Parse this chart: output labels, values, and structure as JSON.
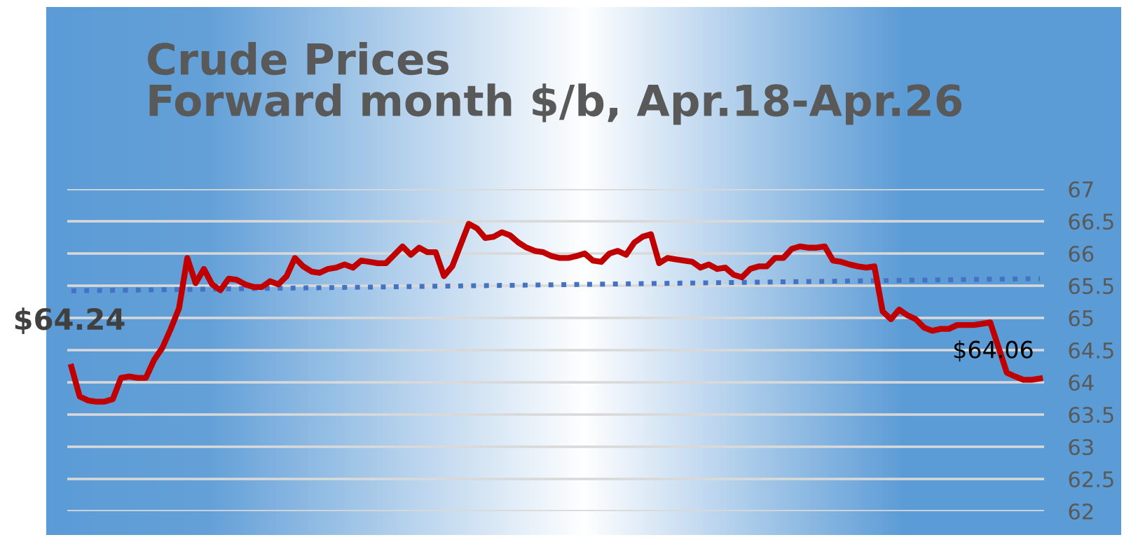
{
  "chart_data": {
    "type": "line",
    "title": "Crude Prices\nForward month $/b, Apr.18-Apr.26",
    "categories": [
      null,
      null,
      null,
      null,
      null,
      null,
      null,
      null,
      null,
      null,
      null,
      null,
      null,
      null,
      null,
      null,
      null,
      null,
      null,
      null,
      null,
      null,
      null,
      null,
      null,
      null,
      null,
      null,
      null,
      null,
      null,
      null,
      null,
      null,
      null,
      null,
      null,
      null,
      null,
      null,
      null,
      null,
      null,
      null,
      null,
      null,
      null,
      null,
      null,
      null,
      null,
      null,
      null,
      null,
      null,
      null,
      null,
      null,
      null,
      null,
      null,
      null,
      null,
      null,
      null,
      null,
      null,
      null,
      null,
      null,
      null,
      null,
      null,
      null,
      null,
      null,
      null,
      null,
      null,
      null,
      null,
      null,
      null,
      null,
      null,
      null,
      null,
      null,
      null,
      null,
      null,
      null,
      null,
      null,
      null,
      null,
      null,
      null,
      null,
      null,
      null,
      null,
      null,
      null,
      null,
      null,
      null,
      null,
      null,
      null,
      null,
      null,
      null,
      null,
      null,
      null,
      null,
      null
    ],
    "series": [
      {
        "color": "#c00000",
        "values": [
          64.24,
          63.78,
          63.72,
          63.7,
          63.7,
          63.74,
          64.07,
          64.09,
          64.07,
          64.07,
          64.35,
          64.54,
          64.83,
          65.15,
          65.93,
          65.54,
          65.76,
          65.52,
          65.43,
          65.61,
          65.59,
          65.52,
          65.48,
          65.48,
          65.57,
          65.52,
          65.65,
          65.93,
          65.8,
          65.72,
          65.7,
          65.76,
          65.78,
          65.83,
          65.78,
          65.89,
          65.87,
          65.85,
          65.85,
          65.98,
          66.11,
          65.98,
          66.09,
          66.02,
          66.02,
          65.65,
          65.8,
          66.13,
          66.46,
          66.39,
          66.24,
          66.26,
          66.33,
          66.28,
          66.17,
          66.09,
          66.04,
          66.02,
          65.96,
          65.93,
          65.93,
          65.96,
          66.0,
          65.89,
          65.87,
          66.0,
          66.04,
          65.98,
          66.17,
          66.26,
          66.3,
          65.85,
          65.93,
          65.91,
          65.89,
          65.87,
          65.78,
          65.83,
          65.76,
          65.78,
          65.67,
          65.63,
          65.76,
          65.8,
          65.8,
          65.93,
          65.93,
          66.07,
          66.11,
          66.09,
          66.09,
          66.11,
          65.89,
          65.87,
          65.83,
          65.8,
          65.78,
          65.8,
          65.1,
          64.98,
          65.13,
          65.04,
          64.98,
          64.85,
          64.8,
          64.83,
          64.83,
          64.89,
          64.89,
          64.89,
          64.91,
          64.93,
          64.54,
          64.15,
          64.09,
          64.04,
          64.04,
          64.06
        ],
        "value_labels": [
          "$64.24",
          null,
          null,
          null,
          null,
          null,
          null,
          null,
          null,
          null,
          null,
          null,
          null,
          null,
          null,
          null,
          null,
          null,
          null,
          null,
          null,
          null,
          null,
          null,
          null,
          null,
          null,
          null,
          null,
          null,
          null,
          null,
          null,
          null,
          null,
          null,
          null,
          null,
          null,
          null,
          null,
          null,
          null,
          null,
          null,
          null,
          null,
          null,
          null,
          null,
          null,
          null,
          null,
          null,
          null,
          null,
          null,
          null,
          null,
          null,
          null,
          null,
          null,
          null,
          null,
          null,
          null,
          null,
          null,
          null,
          null,
          null,
          null,
          null,
          null,
          null,
          null,
          null,
          null,
          null,
          null,
          null,
          null,
          null,
          null,
          null,
          null,
          null,
          null,
          null,
          null,
          null,
          null,
          null,
          null,
          null,
          null,
          null,
          null,
          null,
          null,
          null,
          null,
          null,
          null,
          null,
          null,
          null,
          null,
          null,
          null,
          null,
          null,
          null,
          null,
          null,
          null,
          "$64.06"
        ]
      },
      {
        "type": "line",
        "color": "#4472c4",
        "line_style": "dotted",
        "values": [
          65.42,
          null,
          null,
          null,
          null,
          null,
          null,
          null,
          null,
          null,
          null,
          null,
          null,
          null,
          null,
          null,
          null,
          null,
          null,
          null,
          null,
          null,
          null,
          null,
          null,
          null,
          null,
          null,
          null,
          null,
          null,
          null,
          null,
          null,
          null,
          null,
          null,
          null,
          null,
          null,
          null,
          null,
          null,
          null,
          null,
          null,
          null,
          null,
          null,
          null,
          null,
          null,
          null,
          null,
          null,
          null,
          null,
          null,
          null,
          null,
          null,
          null,
          null,
          null,
          null,
          null,
          null,
          null,
          null,
          null,
          null,
          null,
          null,
          null,
          null,
          null,
          null,
          null,
          null,
          null,
          null,
          null,
          null,
          null,
          null,
          null,
          null,
          null,
          null,
          null,
          null,
          null,
          null,
          null,
          null,
          null,
          null,
          null,
          null,
          null,
          null,
          null,
          null,
          null,
          null,
          null,
          null,
          null,
          null,
          null,
          null,
          null,
          null,
          null,
          null,
          null,
          null,
          65.61
        ]
      }
    ],
    "ylim": [
      62,
      67
    ],
    "yticks": [
      62,
      62.5,
      63,
      63.5,
      64,
      64.5,
      65,
      65.5,
      66,
      66.5,
      67
    ],
    "grid": "y",
    "legend": false,
    "tick_labels": "y",
    "line_style": "solid",
    "marker": "none"
  }
}
